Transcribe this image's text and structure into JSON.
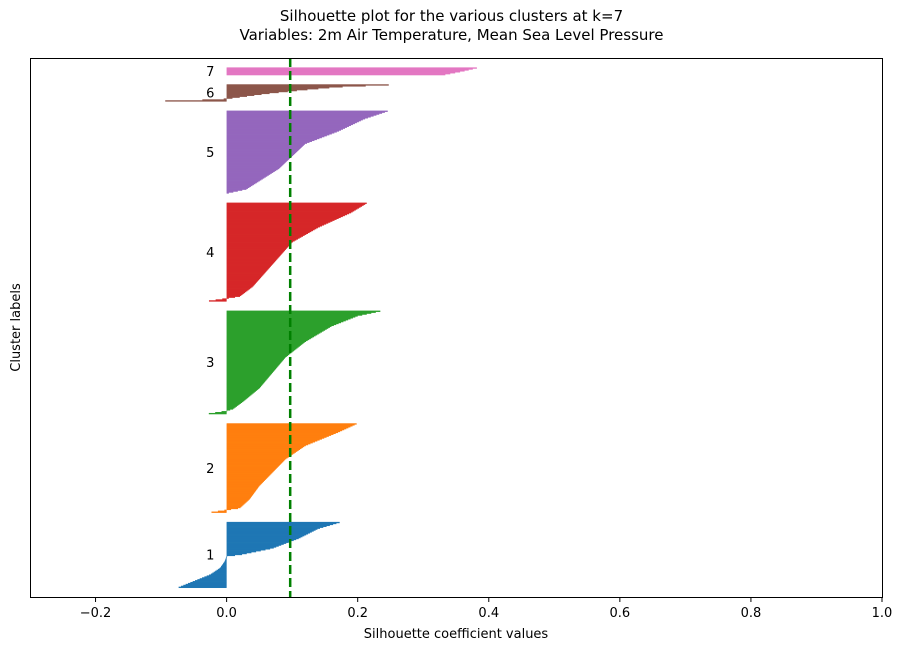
{
  "chart_data": {
    "type": "bar",
    "orientation": "horizontal",
    "title": "Silhouette plot for the various clusters at k=7",
    "subtitle": "Variables: 2m Air Temperature, Mean Sea Level Pressure",
    "xlabel": "Silhouette coefficient values",
    "ylabel": "Cluster labels",
    "xlim": [
      -0.3,
      1.0
    ],
    "xticks": [
      -0.2,
      0.0,
      0.2,
      0.4,
      0.6,
      0.8,
      1.0
    ],
    "xtick_labels": [
      "−0.2",
      "0.0",
      "0.2",
      "0.4",
      "0.6",
      "0.8",
      "1.0"
    ],
    "yticks": [],
    "grid": false,
    "average_silhouette_score": 0.097,
    "average_line_color": "#008000",
    "average_line_style": "dashed",
    "clusters": [
      {
        "label": "1",
        "color": "#1f77b4",
        "max": 0.175,
        "min": -0.075,
        "size": 70,
        "profile": [
          [
            0,
            0.175
          ],
          [
            0.1,
            0.14
          ],
          [
            0.25,
            0.11
          ],
          [
            0.4,
            0.07
          ],
          [
            0.5,
            0.02
          ],
          [
            0.52,
            0.0
          ],
          [
            0.6,
            -0.003
          ],
          [
            0.7,
            -0.01
          ],
          [
            0.8,
            -0.025
          ],
          [
            0.9,
            -0.05
          ],
          [
            1,
            -0.075
          ]
        ]
      },
      {
        "label": "2",
        "color": "#ff7f0e",
        "max": 0.2,
        "min": -0.028,
        "size": 95,
        "profile": [
          [
            0,
            0.2
          ],
          [
            0.1,
            0.17
          ],
          [
            0.25,
            0.12
          ],
          [
            0.4,
            0.09
          ],
          [
            0.55,
            0.07
          ],
          [
            0.7,
            0.05
          ],
          [
            0.85,
            0.035
          ],
          [
            0.95,
            0.02
          ],
          [
            0.97,
            0.0
          ],
          [
            1,
            -0.028
          ]
        ]
      },
      {
        "label": "3",
        "color": "#2ca02c",
        "max": 0.238,
        "min": -0.032,
        "size": 110,
        "profile": [
          [
            0,
            0.238
          ],
          [
            0.05,
            0.2
          ],
          [
            0.15,
            0.16
          ],
          [
            0.3,
            0.12
          ],
          [
            0.45,
            0.09
          ],
          [
            0.6,
            0.07
          ],
          [
            0.75,
            0.05
          ],
          [
            0.88,
            0.025
          ],
          [
            0.95,
            0.01
          ],
          [
            0.97,
            0.0
          ],
          [
            1,
            -0.032
          ]
        ]
      },
      {
        "label": "4",
        "color": "#d62728",
        "max": 0.215,
        "min": -0.032,
        "size": 105,
        "profile": [
          [
            0,
            0.215
          ],
          [
            0.1,
            0.19
          ],
          [
            0.25,
            0.14
          ],
          [
            0.4,
            0.1
          ],
          [
            0.55,
            0.08
          ],
          [
            0.7,
            0.06
          ],
          [
            0.85,
            0.04
          ],
          [
            0.95,
            0.02
          ],
          [
            0.97,
            0.0
          ],
          [
            1,
            -0.032
          ]
        ]
      },
      {
        "label": "5",
        "color": "#9467bd",
        "max": 0.248,
        "min": 0.0,
        "size": 88,
        "profile": [
          [
            0,
            0.248
          ],
          [
            0.1,
            0.21
          ],
          [
            0.25,
            0.17
          ],
          [
            0.4,
            0.12
          ],
          [
            0.55,
            0.1
          ],
          [
            0.7,
            0.08
          ],
          [
            0.85,
            0.05
          ],
          [
            0.95,
            0.03
          ],
          [
            1,
            0.0
          ]
        ]
      },
      {
        "label": "6",
        "color": "#8c564b",
        "max": 0.265,
        "min": -0.122,
        "size": 18,
        "profile": [
          [
            0,
            0.265
          ],
          [
            0.15,
            0.17
          ],
          [
            0.35,
            0.11
          ],
          [
            0.55,
            0.06
          ],
          [
            0.75,
            0.02
          ],
          [
            0.85,
            0.0
          ],
          [
            0.9,
            -0.02
          ],
          [
            1,
            -0.122
          ]
        ]
      },
      {
        "label": "7",
        "color": "#e377c2",
        "max": 0.385,
        "min": 0.33,
        "size": 8,
        "profile": [
          [
            0,
            0.385
          ],
          [
            0.5,
            0.36
          ],
          [
            1,
            0.33
          ]
        ]
      }
    ]
  }
}
